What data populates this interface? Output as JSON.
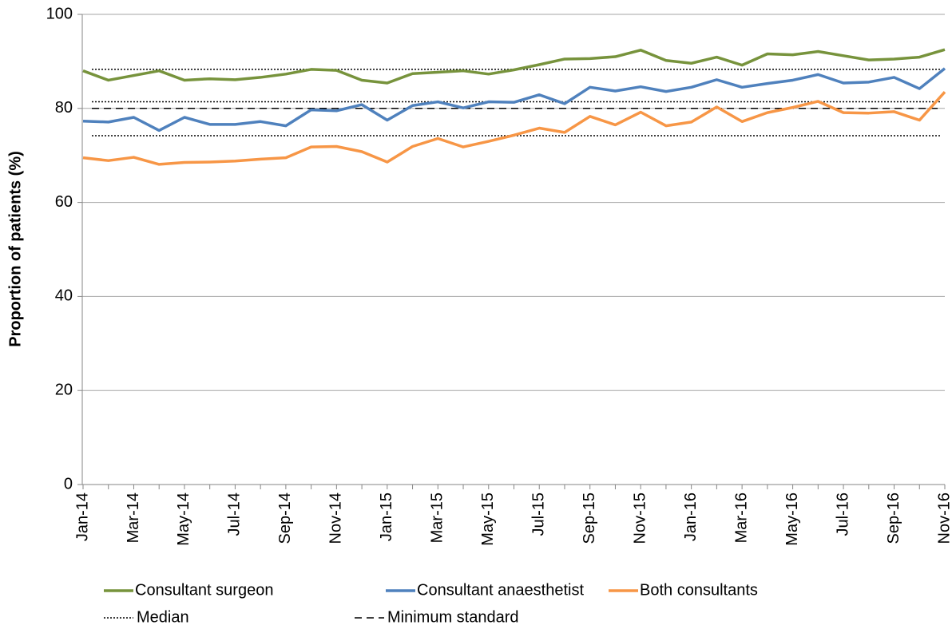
{
  "chart_data": {
    "type": "line",
    "y_label": "Proportion of patients (%)",
    "categories": [
      "Jan-14",
      null,
      "Mar-14",
      null,
      "May-14",
      null,
      "Jul-14",
      null,
      "Sep-14",
      null,
      "Nov-14",
      null,
      "Jan-15",
      null,
      "Mar-15",
      null,
      "May-15",
      null,
      "Jul-15",
      null,
      "Sep-15",
      null,
      "Nov-15",
      null,
      "Jan-16",
      null,
      "Mar-16",
      null,
      "May-16",
      null,
      "Jul-16",
      null,
      "Sep-16",
      null,
      "Nov-16"
    ],
    "series": [
      {
        "name": "Consultant surgeon",
        "color": "#77933c",
        "values": [
          88,
          86,
          87,
          88,
          86,
          86.3,
          86.1,
          86.6,
          87.3,
          88.3,
          88.1,
          86,
          85.4,
          87.4,
          87.7,
          88,
          87.3,
          88.2,
          89.3,
          90.5,
          90.6,
          91,
          92.4,
          90.2,
          89.6,
          90.9,
          89.2,
          91.6,
          91.4,
          92.1,
          91.2,
          90.3,
          90.5,
          90.9,
          92.5
        ]
      },
      {
        "name": "Consultant anaesthetist",
        "color": "#4f81bd",
        "values": [
          77.3,
          77.1,
          78.1,
          75.3,
          78.1,
          76.6,
          76.6,
          77.2,
          76.3,
          79.7,
          79.5,
          80.8,
          77.5,
          80.6,
          81.4,
          80.1,
          81.4,
          81.3,
          82.9,
          81,
          84.5,
          83.7,
          84.6,
          83.6,
          84.5,
          86.1,
          84.5,
          85.3,
          86,
          87.2,
          85.4,
          85.6,
          86.6,
          84.2,
          88.5
        ]
      },
      {
        "name": "Both consultants",
        "color": "#f79646",
        "values": [
          69.5,
          68.9,
          69.6,
          68.1,
          68.5,
          68.6,
          68.8,
          69.2,
          69.5,
          71.8,
          71.9,
          70.8,
          68.6,
          71.9,
          73.6,
          71.8,
          73,
          74.3,
          75.8,
          74.9,
          78.3,
          76.5,
          79.2,
          76.3,
          77.1,
          80.3,
          77.2,
          79.1,
          80.2,
          81.5,
          79.1,
          79,
          79.3,
          77.5,
          83.5
        ]
      }
    ],
    "reference_lines": [
      {
        "name": "Median",
        "style": "dotted",
        "color": "#000000",
        "values": [
          88.3,
          81.4,
          74.2
        ]
      },
      {
        "name": "Minimum standard",
        "style": "dashed",
        "color": "#000000",
        "values": [
          80
        ]
      }
    ],
    "ylim": [
      0,
      100
    ],
    "yticks": [
      0,
      20,
      40,
      60,
      80,
      100
    ],
    "grid": true
  }
}
